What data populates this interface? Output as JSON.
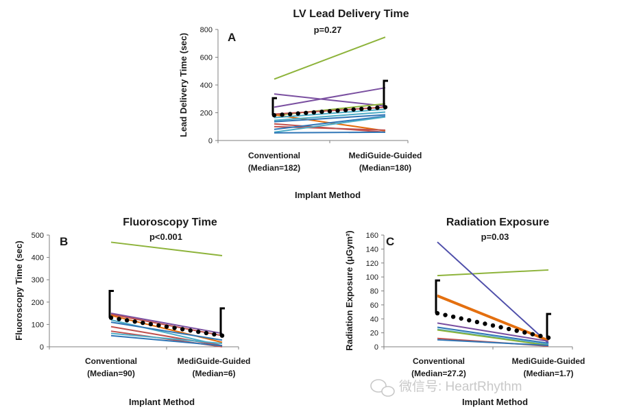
{
  "chart_data": [
    {
      "panel": "A",
      "type": "line",
      "title": "LV Lead Delivery Time",
      "pvalue": "p=0.27",
      "xlabel": "Implant Method",
      "ylabel": "Lead Delivery Time (sec)",
      "categories": [
        [
          "Conventional",
          "(Median=182)"
        ],
        [
          "MediGuide-Guided",
          "(Median=180)"
        ]
      ],
      "ylim": [
        0,
        800
      ],
      "yticks": [
        "0",
        "200",
        "400",
        "600",
        "800"
      ],
      "series": [
        {
          "color": "#8db33a",
          "values": [
            442,
            745
          ]
        },
        {
          "color": "#7a4fa0",
          "values": [
            335,
            248
          ]
        },
        {
          "color": "#7a4fa0",
          "values": [
            240,
            380
          ]
        },
        {
          "color": "#8db33a",
          "values": [
            180,
            265
          ]
        },
        {
          "color": "#c0504d",
          "values": [
            190,
            240
          ]
        },
        {
          "color": "#e36c0a",
          "values": [
            185,
            70
          ]
        },
        {
          "color": "#4bacc6",
          "values": [
            165,
            225
          ]
        },
        {
          "color": "#4bacc6",
          "values": [
            145,
            205
          ]
        },
        {
          "color": "#2e75b6",
          "values": [
            135,
            185
          ]
        },
        {
          "color": "#c0504d",
          "values": [
            120,
            60
          ]
        },
        {
          "color": "#c0504d",
          "values": [
            100,
            75
          ]
        },
        {
          "color": "#2e75b6",
          "values": [
            80,
            175
          ]
        },
        {
          "color": "#4bacc6",
          "values": [
            60,
            170
          ]
        },
        {
          "color": "#2e75b6",
          "values": [
            55,
            60
          ]
        }
      ],
      "median_trend": [
        182,
        240
      ],
      "error_bars": [
        {
          "low": 182,
          "high": 305
        },
        {
          "low": 240,
          "high": 430
        }
      ]
    },
    {
      "panel": "B",
      "type": "line",
      "title": "Fluoroscopy Time",
      "pvalue": "p<0.001",
      "xlabel": "Implant Method",
      "ylabel": "Fluoroscopy Time (sec)",
      "categories": [
        [
          "Conventional",
          "(Median=90)"
        ],
        [
          "MediGuide-Guided",
          "(Median=6)"
        ]
      ],
      "ylim": [
        0,
        500
      ],
      "yticks": [
        "0",
        "100",
        "200",
        "300",
        "400",
        "500"
      ],
      "series": [
        {
          "color": "#8db33a",
          "values": [
            468,
            408
          ]
        },
        {
          "color": "#7a4fa0",
          "values": [
            150,
            60
          ]
        },
        {
          "color": "#c0504d",
          "values": [
            145,
            50
          ]
        },
        {
          "color": "#e36c0a",
          "values": [
            140,
            20
          ]
        },
        {
          "color": "#4bacc6",
          "values": [
            120,
            5
          ]
        },
        {
          "color": "#2e75b6",
          "values": [
            110,
            30
          ]
        },
        {
          "color": "#c0504d",
          "values": [
            90,
            5
          ]
        },
        {
          "color": "#c0504d",
          "values": [
            70,
            0
          ]
        },
        {
          "color": "#4bacc6",
          "values": [
            60,
            15
          ]
        },
        {
          "color": "#2e75b6",
          "values": [
            50,
            5
          ]
        }
      ],
      "median_trend": [
        130,
        50
      ],
      "error_bars": [
        {
          "low": 130,
          "high": 250
        },
        {
          "low": 50,
          "high": 172
        }
      ]
    },
    {
      "panel": "C",
      "type": "line",
      "title": "Radiation Exposure",
      "pvalue": "p=0.03",
      "xlabel": "Implant Method",
      "ylabel": "Radiation Exposure (μGym²)",
      "categories": [
        [
          "Conventional",
          "(Median=27.2)"
        ],
        [
          "MediGuide-Guided",
          "(Median=1.7)"
        ]
      ],
      "ylim": [
        0,
        160
      ],
      "yticks": [
        "0",
        "20",
        "40",
        "60",
        "80",
        "100",
        "120",
        "140",
        "160"
      ],
      "series": [
        {
          "color": "#8db33a",
          "values": [
            102,
            110
          ]
        },
        {
          "color": "#4f4faa",
          "values": [
            150,
            5
          ]
        },
        {
          "color": "#e36c0a",
          "values": [
            74,
            10
          ]
        },
        {
          "color": "#e36c0a",
          "values": [
            72,
            8
          ]
        },
        {
          "color": "#7a4fa0",
          "values": [
            34,
            8
          ]
        },
        {
          "color": "#2e75b6",
          "values": [
            28,
            5
          ]
        },
        {
          "color": "#4bacc6",
          "values": [
            25,
            3
          ]
        },
        {
          "color": "#8db33a",
          "values": [
            24,
            2
          ]
        },
        {
          "color": "#c0504d",
          "values": [
            12,
            1
          ]
        },
        {
          "color": "#2e75b6",
          "values": [
            10,
            2
          ]
        }
      ],
      "median_trend": [
        48,
        13
      ],
      "error_bars": [
        {
          "low": 48,
          "high": 95
        },
        {
          "low": 13,
          "high": 47
        }
      ]
    }
  ],
  "watermark": "微信号: HeartRhythm",
  "watermark_icon": "wechat-icon"
}
